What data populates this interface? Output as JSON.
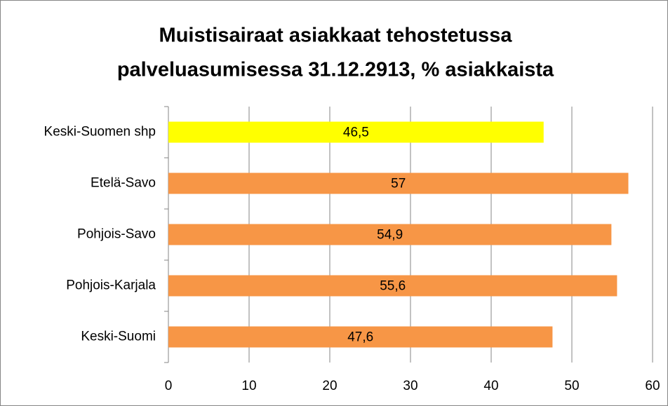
{
  "chart_data": {
    "type": "bar",
    "orientation": "horizontal",
    "title": [
      "Muistisairaat asiakkaat tehostetussa",
      "palveluasumisessa 31.12.2913, % asiakkaista"
    ],
    "categories": [
      "Keski-Suomen shp",
      "Etelä-Savo",
      "Pohjois-Savo",
      "Pohjois-Karjala",
      "Keski-Suomi"
    ],
    "values": [
      46.5,
      57,
      54.9,
      55.6,
      47.6
    ],
    "value_labels": [
      "46,5",
      "57",
      "54,9",
      "55,6",
      "47,6"
    ],
    "colors": [
      "#ffff00",
      "#f79646",
      "#f79646",
      "#f79646",
      "#f79646"
    ],
    "xlim": [
      0,
      60
    ],
    "xticks": [
      0,
      10,
      20,
      30,
      40,
      50,
      60
    ],
    "grid": true
  }
}
